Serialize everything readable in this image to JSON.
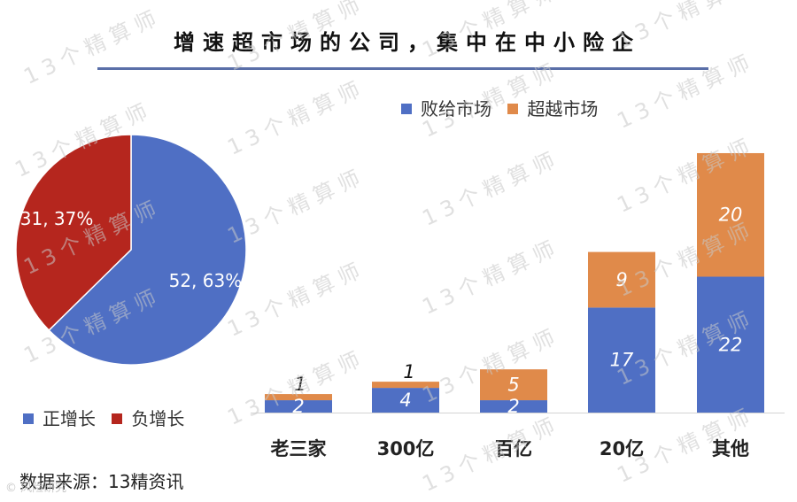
{
  "title": "增速超市场的公司，集中在中小险企",
  "source": "数据来源：13精资讯",
  "watermark": "13个精算师",
  "corner_mark": "© 风险研究",
  "colors": {
    "blue": "#4f6fc4",
    "red": "#b5261e",
    "orange": "#e08a4a",
    "title_rule": "#5a6fa8"
  },
  "chart_data": [
    {
      "type": "pie",
      "slices": [
        {
          "name": "正增长",
          "value": 52,
          "percent": 63,
          "label": "52, 63%",
          "color": "#4f6fc4"
        },
        {
          "name": "负增长",
          "value": 31,
          "percent": 37,
          "label": "31, 37%",
          "color": "#b5261e"
        }
      ],
      "legend": [
        "正增长",
        "负增长"
      ],
      "legend_position": "bottom"
    },
    {
      "type": "bar",
      "stacked": true,
      "categories": [
        "老三家",
        "300亿",
        "百亿",
        "20亿",
        "其他"
      ],
      "series": [
        {
          "name": "败给市场",
          "values": [
            2,
            4,
            2,
            17,
            22
          ],
          "color": "#4f6fc4"
        },
        {
          "name": "超越市场",
          "values": [
            1,
            1,
            5,
            9,
            20
          ],
          "color": "#e08a4a"
        }
      ],
      "ylim": [
        0,
        43
      ],
      "grid": false,
      "legend_position": "top-right"
    }
  ]
}
